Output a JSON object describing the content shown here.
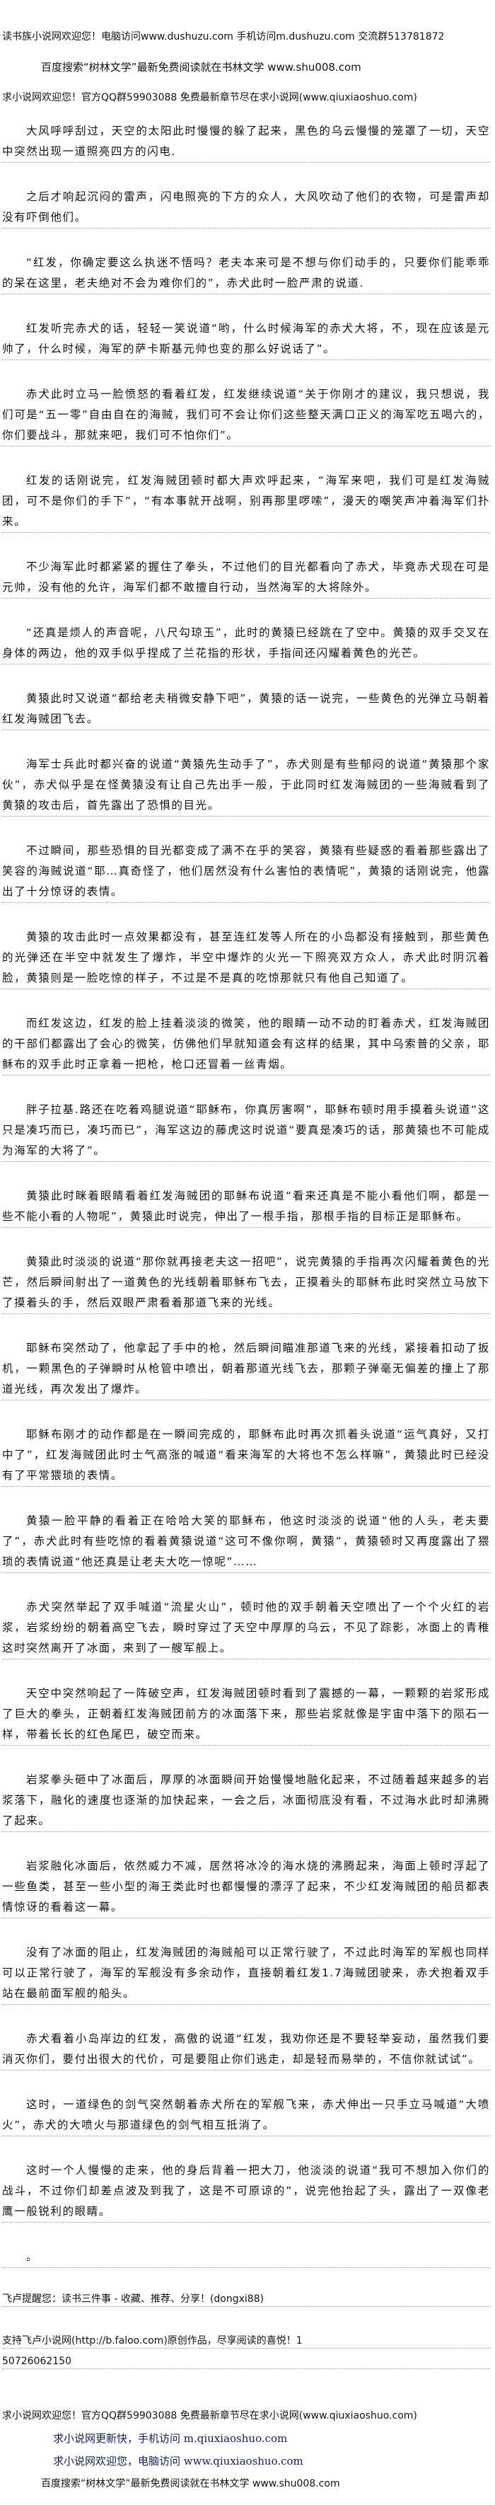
{
  "header": {
    "line1": "读书族小说网欢迎您！电脑访问www.dushuzu.com 手机访问m.dushuzu.com 交流群513781872",
    "line2": "百度搜索“树林文学”最新免费阅读就在书林文学 www.shu008.com",
    "line3": "求小说网欢迎您！官方QQ群59903088 免费最新章节尽在求小说网(www.qiuxiaoshuo.com)"
  },
  "paragraphs": [
    "大风呼呼刮过，天空的太阳此时慢慢的躲了起来，黑色的乌云慢慢的笼罩了一切，天空中突然出现一道照亮四方的闪电.",
    "之后才响起沉闷的雷声，闪电照亮的下方的众人，大风吹动了他们的衣物，可是雷声却没有吓倒他们。",
    "“红发，你确定要这么执迷不悟吗？老夫本来可是不想与你们动手的，只要你们能乖乖的呆在这里，老夫绝对不会为难你们的”，赤犬此时一脸严肃的说道.",
    "红发听完赤犬的话，轻轻一笑说道“哟，什么时候海军的赤犬大将，不，现在应该是元帅了，什么时候，海军的萨卡斯基元帅也变的那么好说话了”。",
    "赤犬此时立马一脸愤怒的看着红发，红发继续说道“关于你刚才的建议，我只想说，我们可是“五一零”自由自在的海贼，我们可不会让你们这些整天满口正义的海军吃五喝六的，你们要战斗，那就来吧，我们可不怕你们”。",
    "红发的话刚说完，红发海贼团顿时都大声欢呼起来，“海军来吧，我们可是红发海贼团，可不是你们的手下”，“有本事就开战啊，别再那里啰嗦”，漫天的嘲笑声冲着海军们扑来。",
    "不少海军此时都紧紧的握住了拳头，不过他们的目光都看向了赤犬，毕竟赤犬现在可是元帅，没有他的允许，海军们都不敢擅自行动，当然海军的大将除外。",
    "“还真是烦人的声音呢，八尺勾琼玉”，此时的黄猿已经跳在了空中。黄猿的双手交叉在身体的两边，他的双手似乎捏成了兰花指的形状，手指间还闪耀着黄色的光芒。",
    "黄猿此时又说道“都给老夫稍微安静下吧”，黄猿的话一说完，一些黄色的光弹立马朝着红发海贼团飞去。",
    "海军士兵此时都兴奋的说道“黄猿先生动手了”，赤犬则是有些郁闷的说道“黄猿那个家伙”，赤犬似乎是在怪黄猿没有让自己先出手一般，于此同时红发海贼团的一些海贼看到了黄猿的攻击后，首先露出了恐惧的目光。",
    "不过瞬间，那些恐惧的目光都变成了满不在乎的笑容，黄猿有些疑惑的看着那些露出了笑容的海贼说道“耶…真奇怪了，他们居然没有什么害怕的表情呢”，黄猿的话刚说完，他露出了十分惊讶的表情。",
    "黄猿的攻击此时一点效果都没有，甚至连红发等人所在的小岛都没有接触到，那些黄色的光弹还在半空中就发生了爆炸，半空中爆炸的火光一下照亮双方众人，赤犬此时阴沉着脸，黄猿则是一脸吃惊的样子，不过是不是真的吃惊那就只有他自己知道了。",
    "而红发这边，红发的脸上挂着淡淡的微笑，他的眼睛一动不动的盯着赤犬，红发海贼团的干部们都露出了会心的微笑，仿佛他们早就知道会有这样的结果，其中乌索普的父亲，耶稣布的双手此时正拿着一把枪，枪口还冒着一丝青烟。",
    "胖子拉基.路还在吃着鸡腿说道“耶稣布，你真厉害啊”，耶稣布顿时用手摸着头说道“这只是凑巧而已，凑巧而已”，海军这边的藤虎这时说道“要真是凑巧的话，那黄猿也不可能成为海军的大将了”。",
    "黄猿此时眯着眼睛看着红发海贼团的耶稣布说道“看来还真是不能小看他们啊，都是一些不能小看的人物呢”，黄猿此时说完，伸出了一根手指，那根手指的目标正是耶稣布。",
    "黄猿此时淡淡的说道“那你就再接老夫这一招吧”，说完黄猿的手指再次闪耀着黄色的光芒，然后瞬间射出了一道黄色的光线朝着耶稣布飞去，正摸着头的耶稣布此时突然立马放下了摸着头的手，然后双眼严肃看着那道飞来的光线。",
    "耶稣布突然动了，他拿起了手中的枪，然后瞬间瞄准那道飞来的光线，紧接着扣动了扳机，一颗黑色的子弹瞬时从枪管中喷出，朝着那道光线飞去，那颗子弹毫无偏差的撞上了那道光线，再次发出了爆炸。",
    "耶稣布刚才的动作都是在一瞬间完成的，耶稣布此时再次抓着头说道“运气真好，又打中了”，红发海贼团此时士气高涨的喊道“看来海军的大将也不怎么样嘛”，黄猿此时已经没有了平常猥琐的表情。",
    "黄猿一脸平静的看着正在哈哈大笑的耶稣布，他这时淡淡的说道“他的人头，老夫要了”，赤犬此时有些吃惊的看着黄猿说道“这可不像你啊，黄猿”，黄猿顿时又再度露出了猥琐的表情说道“他还真是让老夫大吃一惊呢”……",
    "赤犬突然举起了双手喊道“流星火山”，顿时他的双手朝着天空喷出了一个个火红的岩浆，岩浆纷纷的朝着高空飞去，瞬时穿过了天空中厚厚的乌云，不见了踪影，冰面上的青稚这时突然离开了冰面，来到了一艘军舰上。",
    "天空中突然响起了一阵破空声，红发海贼团顿时看到了震撼的一幕，一颗颗的岩浆形成了巨大的拳头，正朝着红发海贼团前方的冰面落下来，那些岩浆就像是宇宙中落下的陨石一样，带着长长的红色尾巴，破空而来。",
    "岩浆拳头砸中了冰面后，厚厚的冰面瞬间开始慢慢地融化起来，不过随着越来越多的岩浆落下，融化的速度也逐渐的加快起来，一会之后，冰面彻底没有看，不过海水此时却沸腾了起来。",
    "岩浆融化冰面后，依然威力不减，居然将冰冷的海水烧的沸腾起来，海面上顿时浮起了一些鱼类，甚至一些小型的海王类此时也都慢慢的漂浮了起来，不少红发海贼团的船员都表情惊讶的看着这一幕。",
    "没有了冰面的阻止，红发海贼团的海贼船可以正常行驶了，不过此时海军的军舰也同样可以正常行驶了，海军的军舰没有多余动作，直接朝着红发1.7海贼团驶来，赤犬抱着双手站在最前面军舰的船头。",
    "赤犬看着小岛岸边的红发，高傲的说道“红发，我劝你还是不要轻举妄动，虽然我们要消灭你们，要付出很大的代价，可是要阻止你们逃走，却是轻而易举的，不信你就试试”。",
    "这时，一道绿色的剑气突然朝着赤犬所在的军舰飞来，赤犬伸出一只手立马喊道“大喷火”，赤犬的大喷火与那道绿色的剑气相互抵消了。",
    "这时一个人慢慢的走来，他的身后背着一把大刀，他淡淡的说道“我可不想加入你们的战斗，不过你们却差点波及到我了，这是不可原谅的”，说完他抬起了头，露出了一双像老鹰一般锐利的眼睛。",
    "。"
  ],
  "footer": {
    "reminder": "飞卢提醒您：读书三件事 - 收藏、推荐、分享！(dongxi88)",
    "support": "支持飞卢小说网(http://b.faloo.com)原创作品，尽享阅读的喜悦！1",
    "code": "50726062150",
    "qiuxiao_welcome": "求小说网欢迎您！官方QQ群59903088 免费最新章节尽在求小说网(www.qiuxiaoshuo.com)",
    "mobile": "求小说网更新快，手机访问 m.qiuxiaoshuo.com",
    "pc": "求小说网欢迎您，电脑访问 www.qiuxiaoshuo.com",
    "baidu": "百度搜索“树林文学”最新免费阅读就在书林文学 www.shu008.com"
  }
}
